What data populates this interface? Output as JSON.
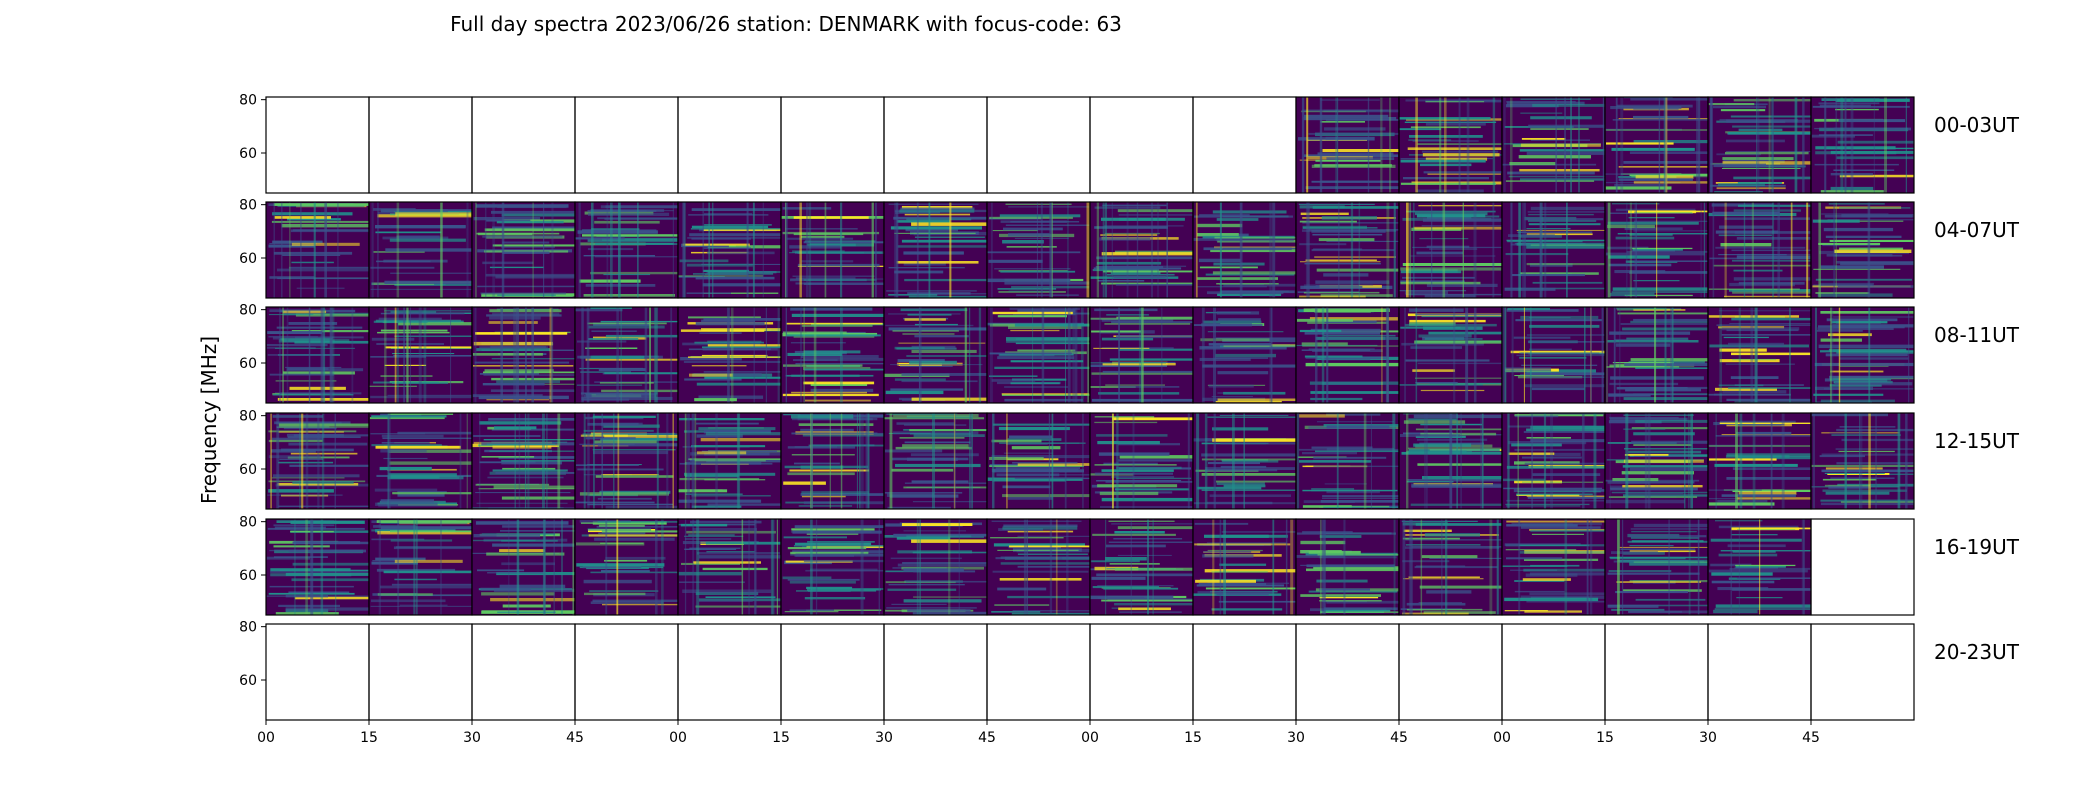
{
  "chart_data": {
    "type": "heatmap",
    "title": "Full day spectra 2023/06/26 station: DENMARK with focus-code: 63",
    "ylabel": "Frequency [MHz]",
    "xlabel": "",
    "ylim": [
      45,
      81
    ],
    "y_ticks": [
      "60",
      "80"
    ],
    "x_tick_labels": [
      "00",
      "15",
      "30",
      "45",
      "00",
      "15",
      "30",
      "45",
      "00",
      "15",
      "30",
      "45",
      "00",
      "15",
      "30",
      "45"
    ],
    "rows": [
      {
        "label": "00-03UT",
        "panels": [
          "empty",
          "empty",
          "empty",
          "empty",
          "empty",
          "empty",
          "empty",
          "empty",
          "empty",
          "empty",
          "data",
          "data",
          "data",
          "data",
          "data",
          "data"
        ]
      },
      {
        "label": "04-07UT",
        "panels": [
          "data",
          "data",
          "data",
          "data",
          "data",
          "data",
          "data",
          "data",
          "data",
          "data",
          "data",
          "data",
          "data",
          "data",
          "data",
          "data"
        ]
      },
      {
        "label": "08-11UT",
        "panels": [
          "data",
          "data",
          "data",
          "data",
          "data",
          "data",
          "data",
          "data",
          "data",
          "data",
          "data",
          "data",
          "data",
          "data",
          "data",
          "data"
        ]
      },
      {
        "label": "12-15UT",
        "panels": [
          "data",
          "data",
          "data",
          "data",
          "data",
          "data",
          "data",
          "data",
          "data",
          "data",
          "data",
          "data",
          "data",
          "data",
          "data",
          "data"
        ]
      },
      {
        "label": "16-19UT",
        "panels": [
          "data",
          "data",
          "data",
          "data",
          "data",
          "data",
          "data",
          "data",
          "data",
          "data",
          "data",
          "data",
          "data",
          "data",
          "data",
          "empty"
        ]
      },
      {
        "label": "20-23UT",
        "panels": [
          "empty",
          "empty",
          "empty",
          "empty",
          "empty",
          "empty",
          "empty",
          "empty",
          "empty",
          "empty",
          "empty",
          "empty",
          "empty",
          "empty",
          "empty",
          "empty"
        ]
      }
    ],
    "colormap": [
      "#440154",
      "#3b528b",
      "#21918c",
      "#5ec962",
      "#fde725"
    ],
    "grid": false
  }
}
